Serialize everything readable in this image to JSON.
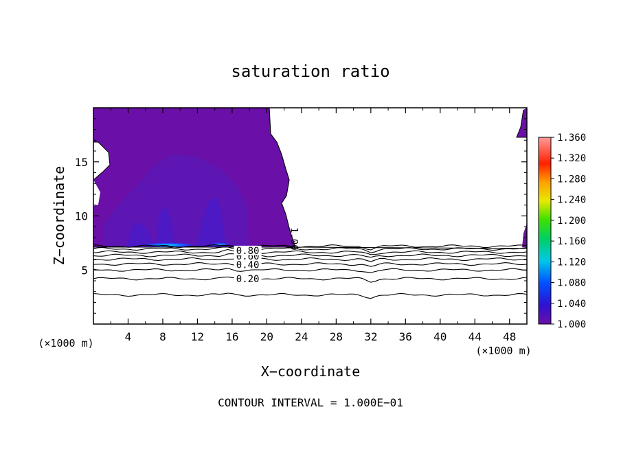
{
  "chart_data": {
    "type": "contour",
    "title": "saturation ratio",
    "xlabel": "X−coordinate",
    "ylabel": "Z−coordinate",
    "x_unit_left": "(×1000 m)",
    "x_unit_right": "(×1000 m)",
    "footer": "CONTOUR INTERVAL = 1.000E−01",
    "xlim": [
      0,
      50
    ],
    "ylim": [
      0,
      20
    ],
    "x_ticks": [
      4,
      8,
      12,
      16,
      20,
      24,
      28,
      32,
      36,
      40,
      44,
      48
    ],
    "y_ticks": [
      5,
      10,
      15
    ],
    "colorbar": {
      "min": 1.0,
      "max": 1.36,
      "ticks": [
        "1.360",
        "1.320",
        "1.280",
        "1.240",
        "1.200",
        "1.160",
        "1.120",
        "1.080",
        "1.040",
        "1.000"
      ]
    },
    "contour_labels": [
      {
        "text": "0.20",
        "x": 17.8,
        "z": 4.2
      },
      {
        "text": "0.40",
        "x": 17.8,
        "z": 5.5
      },
      {
        "text": "0.60",
        "x": 17.8,
        "z": 6.3
      },
      {
        "text": "0.80",
        "x": 17.8,
        "z": 6.8
      },
      {
        "text": "1.00",
        "x": 22.8,
        "z": 8.2
      }
    ],
    "contour_levels": [
      {
        "level": 0.2,
        "z": 4.2
      },
      {
        "level": 0.1,
        "z": 2.7
      },
      {
        "level": 0.3,
        "z": 5.0
      },
      {
        "level": 0.4,
        "z": 5.55
      },
      {
        "level": 0.5,
        "z": 6.0
      },
      {
        "level": 0.6,
        "z": 6.35
      },
      {
        "level": 0.7,
        "z": 6.65
      },
      {
        "level": 0.8,
        "z": 6.95
      },
      {
        "level": 0.9,
        "z": 7.2
      }
    ],
    "supersaturated_region": {
      "x_range": [
        0,
        23.2
      ],
      "z_range": [
        7.1,
        20
      ],
      "value_min": 1.0,
      "value_max": 1.1
    }
  }
}
